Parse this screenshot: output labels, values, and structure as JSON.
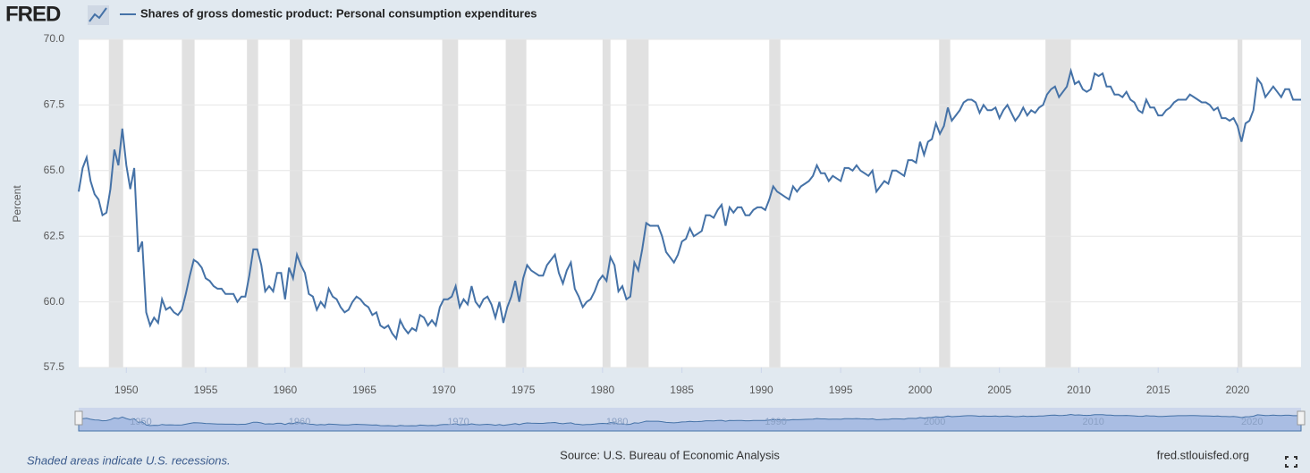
{
  "chart_data": {
    "type": "line",
    "logo": "FRED",
    "ylabel": "Percent",
    "note": "Shaded areas indicate U.S. recessions.",
    "source": "Source: U.S. Bureau of Economic Analysis",
    "site": "fred.stlouisfed.org",
    "xlim": [
      1947,
      2024
    ],
    "ylim": [
      57.5,
      70
    ],
    "xticks": [
      1950,
      1955,
      1960,
      1965,
      1970,
      1975,
      1980,
      1985,
      1990,
      1995,
      2000,
      2005,
      2010,
      2015,
      2020
    ],
    "yticks": [
      {
        "value": 70,
        "label": "70.0"
      },
      67.5,
      {
        "value": 65,
        "label": "65.0"
      },
      62.5,
      {
        "value": 60,
        "label": "60.0"
      },
      57.5
    ],
    "navigator_ticks": [
      1950,
      1960,
      1970,
      1980,
      1990,
      2000,
      2010,
      2020
    ],
    "grid": true,
    "recession_color": "#e1e1e1",
    "recessions": [
      [
        1948.9,
        1949.8
      ],
      [
        1953.5,
        1954.3
      ],
      [
        1957.6,
        1958.3
      ],
      [
        1960.3,
        1961.1
      ],
      [
        1969.9,
        1970.9
      ],
      [
        1973.9,
        1975.2
      ],
      [
        1980.0,
        1980.5
      ],
      [
        1981.5,
        1982.9
      ],
      [
        1990.5,
        1991.2
      ],
      [
        2001.2,
        2001.9
      ],
      [
        2007.9,
        2009.5
      ],
      [
        2020.0,
        2020.3
      ]
    ],
    "x": [
      1947.0,
      1947.25,
      1947.5,
      1947.75,
      1948.0,
      1948.25,
      1948.5,
      1948.75,
      1949.0,
      1949.25,
      1949.5,
      1949.75,
      1950.0,
      1950.25,
      1950.5,
      1950.75,
      1951.0,
      1951.25,
      1951.5,
      1951.75,
      1952.0,
      1952.25,
      1952.5,
      1952.75,
      1953.0,
      1953.25,
      1953.5,
      1953.75,
      1954.0,
      1954.25,
      1954.5,
      1954.75,
      1955.0,
      1955.25,
      1955.5,
      1955.75,
      1956.0,
      1956.25,
      1956.5,
      1956.75,
      1957.0,
      1957.25,
      1957.5,
      1957.75,
      1958.0,
      1958.25,
      1958.5,
      1958.75,
      1959.0,
      1959.25,
      1959.5,
      1959.75,
      1960.0,
      1960.25,
      1960.5,
      1960.75,
      1961.0,
      1961.25,
      1961.5,
      1961.75,
      1962.0,
      1962.25,
      1962.5,
      1962.75,
      1963.0,
      1963.25,
      1963.5,
      1963.75,
      1964.0,
      1964.25,
      1964.5,
      1964.75,
      1965.0,
      1965.25,
      1965.5,
      1965.75,
      1966.0,
      1966.25,
      1966.5,
      1966.75,
      1967.0,
      1967.25,
      1967.5,
      1967.75,
      1968.0,
      1968.25,
      1968.5,
      1968.75,
      1969.0,
      1969.25,
      1969.5,
      1969.75,
      1970.0,
      1970.25,
      1970.5,
      1970.75,
      1971.0,
      1971.25,
      1971.5,
      1971.75,
      1972.0,
      1972.25,
      1972.5,
      1972.75,
      1973.0,
      1973.25,
      1973.5,
      1973.75,
      1974.0,
      1974.25,
      1974.5,
      1974.75,
      1975.0,
      1975.25,
      1975.5,
      1975.75,
      1976.0,
      1976.25,
      1976.5,
      1976.75,
      1977.0,
      1977.25,
      1977.5,
      1977.75,
      1978.0,
      1978.25,
      1978.5,
      1978.75,
      1979.0,
      1979.25,
      1979.5,
      1979.75,
      1980.0,
      1980.25,
      1980.5,
      1980.75,
      1981.0,
      1981.25,
      1981.5,
      1981.75,
      1982.0,
      1982.25,
      1982.5,
      1982.75,
      1983.0,
      1983.25,
      1983.5,
      1983.75,
      1984.0,
      1984.25,
      1984.5,
      1984.75,
      1985.0,
      1985.25,
      1985.5,
      1985.75,
      1986.0,
      1986.25,
      1986.5,
      1986.75,
      1987.0,
      1987.25,
      1987.5,
      1987.75,
      1988.0,
      1988.25,
      1988.5,
      1988.75,
      1989.0,
      1989.25,
      1989.5,
      1989.75,
      1990.0,
      1990.25,
      1990.5,
      1990.75,
      1991.0,
      1991.25,
      1991.5,
      1991.75,
      1992.0,
      1992.25,
      1992.5,
      1992.75,
      1993.0,
      1993.25,
      1993.5,
      1993.75,
      1994.0,
      1994.25,
      1994.5,
      1994.75,
      1995.0,
      1995.25,
      1995.5,
      1995.75,
      1996.0,
      1996.25,
      1996.5,
      1996.75,
      1997.0,
      1997.25,
      1997.5,
      1997.75,
      1998.0,
      1998.25,
      1998.5,
      1998.75,
      1999.0,
      1999.25,
      1999.5,
      1999.75,
      2000.0,
      2000.25,
      2000.5,
      2000.75,
      2001.0,
      2001.25,
      2001.5,
      2001.75,
      2002.0,
      2002.25,
      2002.5,
      2002.75,
      2003.0,
      2003.25,
      2003.5,
      2003.75,
      2004.0,
      2004.25,
      2004.5,
      2004.75,
      2005.0,
      2005.25,
      2005.5,
      2005.75,
      2006.0,
      2006.25,
      2006.5,
      2006.75,
      2007.0,
      2007.25,
      2007.5,
      2007.75,
      2008.0,
      2008.25,
      2008.5,
      2008.75,
      2009.0,
      2009.25,
      2009.5,
      2009.75,
      2010.0,
      2010.25,
      2010.5,
      2010.75,
      2011.0,
      2011.25,
      2011.5,
      2011.75,
      2012.0,
      2012.25,
      2012.5,
      2012.75,
      2013.0,
      2013.25,
      2013.5,
      2013.75,
      2014.0,
      2014.25,
      2014.5,
      2014.75,
      2015.0,
      2015.25,
      2015.5,
      2015.75,
      2016.0,
      2016.25,
      2016.5,
      2016.75,
      2017.0,
      2017.25,
      2017.5,
      2017.75,
      2018.0,
      2018.25,
      2018.5,
      2018.75,
      2019.0,
      2019.25,
      2019.5,
      2019.75,
      2020.0,
      2020.25,
      2020.5,
      2020.75,
      2021.0,
      2021.25,
      2021.5,
      2021.75,
      2022.0,
      2022.25,
      2022.5,
      2022.75,
      2023.0,
      2023.25,
      2023.5,
      2023.75,
      2024.0
    ],
    "series": [
      {
        "name": "Shares of gross domestic product: Personal consumption expenditures",
        "color": "#4572a7",
        "values": [
          64.2,
          65.1,
          65.5,
          64.6,
          64.1,
          63.9,
          63.3,
          63.4,
          64.3,
          65.8,
          65.2,
          66.6,
          65.2,
          64.3,
          65.1,
          61.9,
          62.3,
          59.6,
          59.1,
          59.4,
          59.2,
          60.1,
          59.7,
          59.8,
          59.6,
          59.5,
          59.7,
          60.3,
          61.0,
          61.6,
          61.5,
          61.3,
          60.9,
          60.8,
          60.6,
          60.5,
          60.5,
          60.3,
          60.3,
          60.3,
          60.0,
          60.2,
          60.2,
          61.0,
          62.0,
          62.0,
          61.4,
          60.4,
          60.6,
          60.4,
          61.1,
          61.1,
          60.1,
          61.3,
          60.9,
          61.8,
          61.4,
          61.1,
          60.3,
          60.2,
          59.7,
          60.0,
          59.8,
          60.5,
          60.2,
          60.1,
          59.8,
          59.6,
          59.7,
          60.0,
          60.2,
          60.1,
          59.9,
          59.8,
          59.5,
          59.6,
          59.1,
          59.0,
          59.1,
          58.8,
          58.6,
          59.3,
          59.0,
          58.8,
          59.0,
          58.9,
          59.5,
          59.4,
          59.1,
          59.3,
          59.1,
          59.8,
          60.1,
          60.1,
          60.2,
          60.6,
          59.8,
          60.1,
          59.9,
          60.6,
          60.0,
          59.8,
          60.1,
          60.2,
          59.9,
          59.4,
          60.0,
          59.2,
          59.8,
          60.2,
          60.8,
          60.0,
          60.9,
          61.4,
          61.2,
          61.1,
          61.0,
          61.0,
          61.4,
          61.6,
          61.8,
          61.1,
          60.7,
          61.2,
          61.5,
          60.5,
          60.2,
          59.8,
          60.0,
          60.1,
          60.4,
          60.8,
          61.0,
          60.8,
          61.7,
          61.4,
          60.4,
          60.6,
          60.1,
          60.2,
          61.5,
          61.2,
          62.0,
          63.0,
          62.9,
          62.9,
          62.9,
          62.5,
          61.9,
          61.7,
          61.5,
          61.8,
          62.3,
          62.4,
          62.8,
          62.5,
          62.6,
          62.7,
          63.3,
          63.3,
          63.2,
          63.5,
          63.7,
          62.9,
          63.6,
          63.4,
          63.6,
          63.6,
          63.3,
          63.3,
          63.5,
          63.6,
          63.6,
          63.5,
          63.9,
          64.4,
          64.2,
          64.1,
          64.0,
          63.9,
          64.4,
          64.2,
          64.4,
          64.5,
          64.6,
          64.8,
          65.2,
          64.9,
          64.9,
          64.6,
          64.8,
          64.7,
          64.6,
          65.1,
          65.1,
          65.0,
          65.2,
          65.0,
          64.9,
          64.8,
          65.0,
          64.2,
          64.4,
          64.6,
          64.5,
          65.0,
          65.0,
          64.9,
          64.8,
          65.4,
          65.4,
          65.3,
          66.1,
          65.6,
          66.1,
          66.2,
          66.8,
          66.4,
          66.7,
          67.4,
          66.9,
          67.1,
          67.3,
          67.6,
          67.7,
          67.7,
          67.6,
          67.2,
          67.5,
          67.3,
          67.3,
          67.4,
          67.0,
          67.3,
          67.5,
          67.2,
          66.9,
          67.1,
          67.4,
          67.1,
          67.3,
          67.2,
          67.4,
          67.5,
          67.9,
          68.1,
          68.2,
          67.8,
          68.0,
          68.2,
          68.8,
          68.3,
          68.4,
          68.1,
          68.0,
          68.1,
          68.7,
          68.6,
          68.7,
          68.2,
          68.2,
          67.9,
          67.9,
          67.8,
          68.0,
          67.7,
          67.6,
          67.3,
          67.2,
          67.7,
          67.4,
          67.4,
          67.1,
          67.1,
          67.3,
          67.4,
          67.6,
          67.7,
          67.7,
          67.7,
          67.9,
          67.8,
          67.7,
          67.6,
          67.6,
          67.5,
          67.3,
          67.4,
          67.0,
          67.0,
          66.9,
          67.0,
          66.7,
          66.1,
          66.8,
          66.9,
          67.3,
          68.5,
          68.3,
          67.8,
          68.0,
          68.2,
          68.0,
          67.8,
          68.1,
          68.1,
          67.7,
          67.7,
          67.7
        ]
      }
    ]
  }
}
